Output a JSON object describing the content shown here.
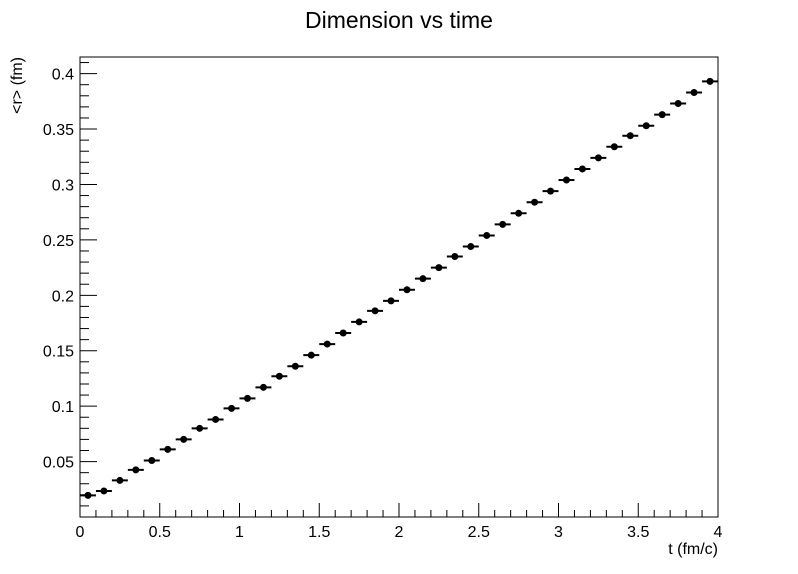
{
  "chart_data": {
    "type": "scatter",
    "title": "Dimension vs time",
    "xlabel": "t (fm/c)",
    "ylabel": "<r> (fm)",
    "xlim": [
      0,
      4
    ],
    "ylim": [
      0,
      0.415
    ],
    "x_ticks": [
      "0",
      "0.5",
      "1",
      "1.5",
      "2",
      "2.5",
      "3",
      "3.5",
      "4"
    ],
    "y_ticks": [
      "0.05",
      "0.1",
      "0.15",
      "0.2",
      "0.25",
      "0.3",
      "0.35",
      "0.4"
    ],
    "grid": false,
    "x_error": 0.05,
    "marker_color": "#000000",
    "series": [
      {
        "x": [
          0.05,
          0.15,
          0.25,
          0.35,
          0.45,
          0.55,
          0.65,
          0.75,
          0.85,
          0.95,
          1.05,
          1.15,
          1.25,
          1.35,
          1.45,
          1.55,
          1.65,
          1.75,
          1.85,
          1.95,
          2.05,
          2.15,
          2.25,
          2.35,
          2.45,
          2.55,
          2.65,
          2.75,
          2.85,
          2.95,
          3.05,
          3.15,
          3.25,
          3.35,
          3.45,
          3.55,
          3.65,
          3.75,
          3.85,
          3.95
        ],
        "values": [
          0.0195,
          0.0235,
          0.033,
          0.0425,
          0.051,
          0.061,
          0.07,
          0.08,
          0.088,
          0.098,
          0.107,
          0.117,
          0.127,
          0.136,
          0.146,
          0.156,
          0.166,
          0.176,
          0.186,
          0.195,
          0.205,
          0.215,
          0.225,
          0.235,
          0.244,
          0.254,
          0.264,
          0.274,
          0.284,
          0.294,
          0.304,
          0.314,
          0.324,
          0.334,
          0.344,
          0.353,
          0.363,
          0.373,
          0.383,
          0.393
        ]
      }
    ]
  }
}
